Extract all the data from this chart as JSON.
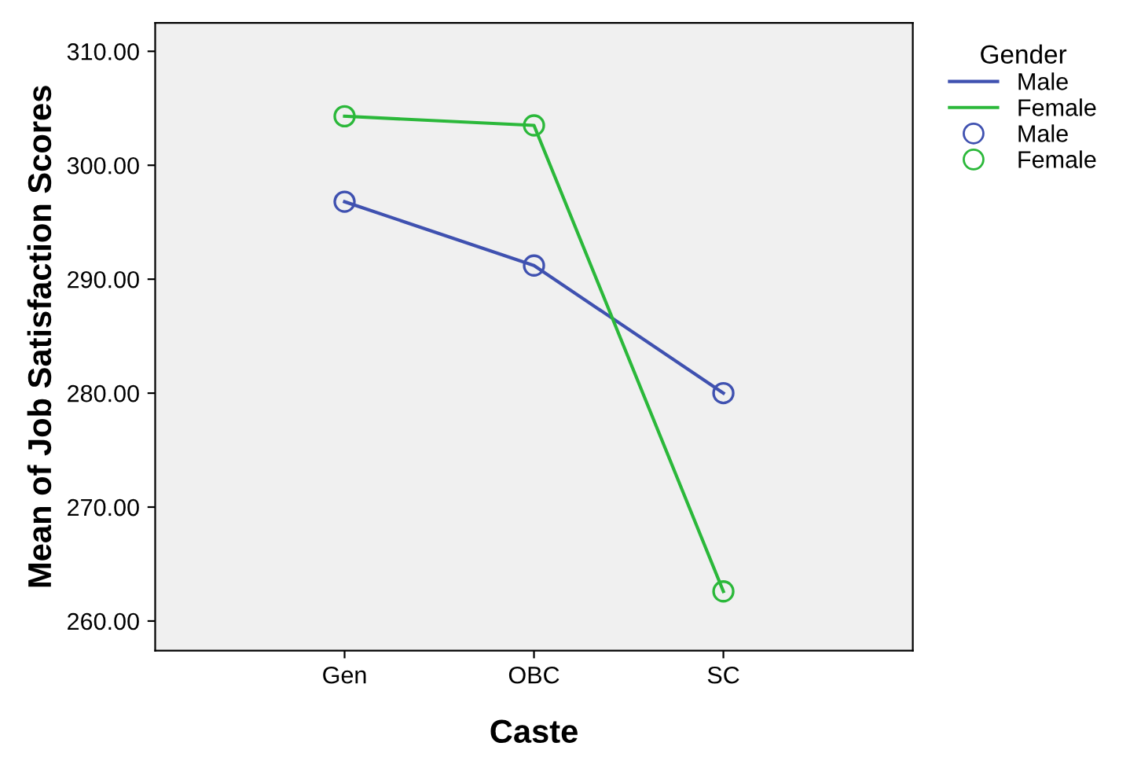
{
  "chart_data": {
    "type": "line",
    "xlabel": "Caste",
    "ylabel": "Mean of Job Satisfaction Scores",
    "legend_title": "Gender",
    "legend": "top right",
    "marker": "circle",
    "line_style": "solid",
    "grid": false,
    "categories": [
      "Gen",
      "OBC",
      "SC"
    ],
    "ylim": [
      257.4,
      312.5
    ],
    "yticks": [
      {
        "value": 260,
        "label": "260.00"
      },
      {
        "value": 270,
        "label": "270.00"
      },
      {
        "value": 280,
        "label": "280.00"
      },
      {
        "value": 290,
        "label": "290.00"
      },
      {
        "value": 300,
        "label": "300.00"
      },
      {
        "value": 310,
        "label": "310.00"
      }
    ],
    "series": [
      {
        "name": "Male",
        "color": "#3f51b0",
        "values": [
          296.8,
          291.2,
          280.0
        ]
      },
      {
        "name": "Female",
        "color": "#2bb83a",
        "values": [
          304.3,
          303.5,
          262.6
        ]
      }
    ]
  }
}
